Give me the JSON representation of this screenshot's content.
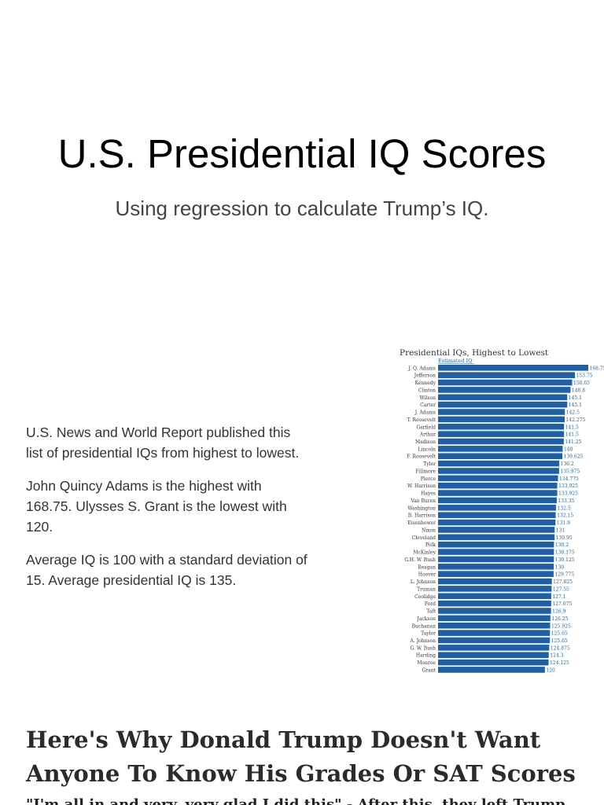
{
  "slide": {
    "title": "U.S. Presidential IQ Scores",
    "subtitle": "Using regression to calculate Trump’s IQ."
  },
  "body": {
    "paragraphs": [
      "U.S. News and World Report published this list of presidential IQs from highest to lowest.",
      "John Quincy Adams is the highest with 168.75.  Ulysses S. Grant is the lowest with 120.",
      "Average IQ is 100 with a standard deviation of 15.  Average presidential IQ is 135."
    ]
  },
  "ad": {
    "headline_line1": "Here's Why Donald Trump Doesn't Want",
    "headline_line2": "Anyone To Know His Grades Or SAT Scores",
    "cutoff_text": "\"I'm all in and very, very glad I did this\" - After this, they left Trump"
  },
  "chart_data": {
    "type": "bar",
    "orientation": "horizontal",
    "title": "Presidential IQs, Highest to Lowest",
    "legend": "Estimated IQ",
    "bar_color": "#1f5fa8",
    "value_labels": [
      "168.75",
      "153.75",
      "150.65",
      "148.8",
      "145.1",
      "145.1",
      "142.5",
      "142.275",
      "141.5",
      "141.5",
      "141.25",
      "140",
      "139.625",
      "136.2",
      "135.975",
      "134.775",
      "133.925",
      "133.925",
      "133.35",
      "132.5",
      "132.15",
      "131.9",
      "131",
      "130.95",
      "130.2",
      "130.175",
      "130.125",
      "130",
      "129.775",
      "127.825",
      "127.55",
      "127.1",
      "127.075",
      "126.9",
      "126.25",
      "125.925",
      "125.65",
      "125.65",
      "124.875",
      "124.3",
      "124.125",
      "120"
    ],
    "categories": [
      "J. Q. Adams",
      "Jefferson",
      "Kennedy",
      "Clinton",
      "Wilson",
      "Carter",
      "J. Adams",
      "T. Roosevelt",
      "Garfield",
      "Arthur",
      "Madison",
      "Lincoln",
      "F. Roosevelt",
      "Tyler",
      "Fillmore",
      "Pierce",
      "W. Harrison",
      "Hayes",
      "Van Buren",
      "Washington",
      "B. Harrison",
      "Eisenhower",
      "Nixon",
      "Cleveland",
      "Polk",
      "McKinley",
      "G.H. W. Bush",
      "Reagan",
      "Hoover",
      "L. Johnson",
      "Truman",
      "Coolidge",
      "Ford",
      "Taft",
      "Jackson",
      "Buchanan",
      "Taylor",
      "A. Johnson",
      "G. W. Bush",
      "Harding",
      "Monroe",
      "Grant"
    ],
    "values": [
      168.75,
      153.75,
      150.65,
      148.8,
      145.1,
      145.1,
      142.5,
      142.275,
      141.5,
      141.5,
      141.25,
      140,
      139.625,
      136.2,
      135.975,
      134.775,
      133.925,
      133.925,
      133.35,
      132.5,
      132.15,
      131.9,
      131,
      130.95,
      130.2,
      130.175,
      130.125,
      130,
      129.775,
      127.825,
      127.55,
      127.1,
      127.075,
      126.9,
      126.25,
      125.925,
      125.65,
      125.65,
      124.875,
      124.3,
      124.125,
      120
    ],
    "xlim": [
      0,
      168.75
    ]
  }
}
